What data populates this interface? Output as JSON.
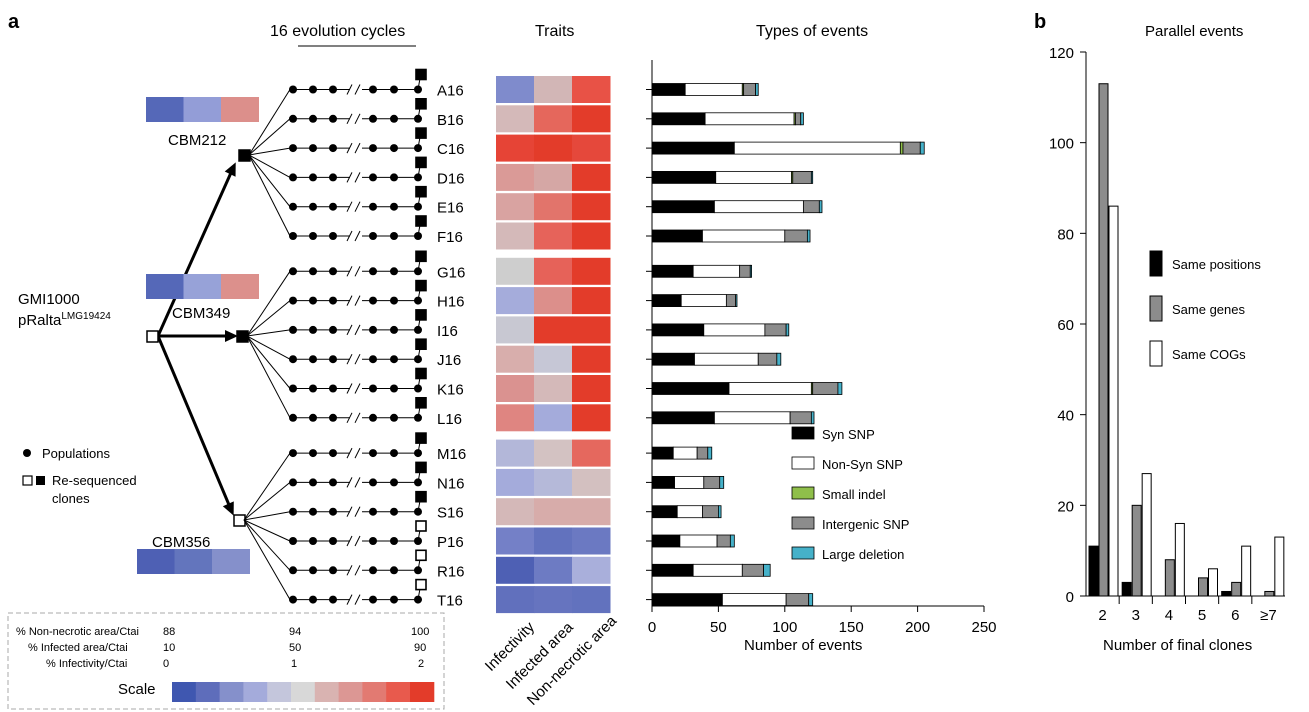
{
  "panels": {
    "a": "a",
    "b": "b"
  },
  "header": {
    "cycles": "16 evolution cycles",
    "traits": "Traits",
    "events_title": "Types of events"
  },
  "tree": {
    "ancestor_line1": "GMI1000",
    "ancestor_line2_base": "pRalta",
    "ancestor_line2_sup": "LMG19424",
    "parents": [
      "CBM212",
      "CBM349",
      "CBM356"
    ],
    "legend_populations": "Populations",
    "legend_clones_line1": "Re-sequenced",
    "legend_clones_line2": "clones"
  },
  "parent_trait_colors": [
    [
      "#5568b8",
      "#939dd7",
      "#dc8f8b"
    ],
    [
      "#5568b8",
      "#97a2d8",
      "#dc908c"
    ],
    [
      "#4e60b4",
      "#6375bd",
      "#8590cb"
    ]
  ],
  "clones": [
    {
      "name": "A16",
      "open": false,
      "traits": [
        "#7f8bcc",
        "#d2b6b6",
        "#e85246"
      ]
    },
    {
      "name": "B16",
      "open": false,
      "traits": [
        "#d4b9b9",
        "#e5675c",
        "#e33c2a"
      ]
    },
    {
      "name": "C16",
      "open": false,
      "traits": [
        "#e64436",
        "#e33c2a",
        "#e5483b"
      ]
    },
    {
      "name": "D16",
      "open": false,
      "traits": [
        "#da9a97",
        "#d5a7a5",
        "#e33c2a"
      ]
    },
    {
      "name": "E16",
      "open": false,
      "traits": [
        "#d9a3a1",
        "#e2746b",
        "#e33c2a"
      ]
    },
    {
      "name": "F16",
      "open": false,
      "traits": [
        "#d4b9b9",
        "#e6635a",
        "#e33c2a"
      ]
    },
    {
      "name": "G16",
      "open": false,
      "traits": [
        "#cecece",
        "#e66259",
        "#e33c2a"
      ]
    },
    {
      "name": "H16",
      "open": false,
      "traits": [
        "#a5acdb",
        "#dc8f8b",
        "#e33c2a"
      ]
    },
    {
      "name": "I16",
      "open": false,
      "traits": [
        "#c8c8d2",
        "#e33c2a",
        "#e33c2a"
      ]
    },
    {
      "name": "J16",
      "open": false,
      "traits": [
        "#d8aeac",
        "#c6c7d6",
        "#e33c2a"
      ]
    },
    {
      "name": "K16",
      "open": false,
      "traits": [
        "#da9290",
        "#d4b9b9",
        "#e33c2a"
      ]
    },
    {
      "name": "L16",
      "open": false,
      "traits": [
        "#df8581",
        "#a4abdb",
        "#e33c2a"
      ]
    },
    {
      "name": "M16",
      "open": false,
      "traits": [
        "#b3b7d9",
        "#d3c2c2",
        "#e5685e"
      ]
    },
    {
      "name": "N16",
      "open": false,
      "traits": [
        "#a4abdb",
        "#b5b9d9",
        "#d3c0c0"
      ]
    },
    {
      "name": "S16",
      "open": false,
      "traits": [
        "#d4b8b8",
        "#d7acaa",
        "#d7acaa"
      ]
    },
    {
      "name": "P16",
      "open": true,
      "traits": [
        "#7480c7",
        "#6272be",
        "#6b79c2"
      ]
    },
    {
      "name": "R16",
      "open": true,
      "traits": [
        "#4e60b4",
        "#6d7bc3",
        "#a9afdb"
      ]
    },
    {
      "name": "T16",
      "open": true,
      "traits": [
        "#6170bd",
        "#6674bf",
        "#6272be"
      ]
    }
  ],
  "trait_axis_labels": [
    "Infectivity",
    "Infected area",
    "Non-necrotic area"
  ],
  "scale": {
    "rows": [
      {
        "label": "% Non-necrotic area/Ctai",
        "v1": "88",
        "v2": "94",
        "v3": "100"
      },
      {
        "label": "% Infected area/Ctai",
        "v1": "10",
        "v2": "50",
        "v3": "90"
      },
      {
        "label": "% Infectivity/Ctai",
        "v1": "0",
        "v2": "1",
        "v3": "2"
      }
    ],
    "title": "Scale",
    "colors": [
      "#3f57b0",
      "#5e6dbb",
      "#8590cb",
      "#a4abdb",
      "#c4c6dc",
      "#d8d8d8",
      "#d9b3b1",
      "#dc9794",
      "#e27a72",
      "#e85a4d",
      "#e33c2a"
    ]
  },
  "events_chart": {
    "type": "bar",
    "orientation": "horizontal",
    "stacked": true,
    "xlabel": "Number of events",
    "xlim": [
      0,
      250
    ],
    "xticks": [
      "0",
      "50",
      "100",
      "150",
      "200",
      "250"
    ],
    "categories": [
      "A16",
      "B16",
      "C16",
      "D16",
      "E16",
      "F16",
      "G16",
      "H16",
      "I16",
      "J16",
      "K16",
      "L16",
      "M16",
      "N16",
      "S16",
      "P16",
      "R16",
      "T16"
    ],
    "series": [
      {
        "name": "Syn SNP",
        "color": "#000000",
        "values": [
          25,
          40,
          62,
          48,
          47,
          38,
          31,
          22,
          39,
          32,
          58,
          47,
          16,
          17,
          19,
          21,
          31,
          53
        ]
      },
      {
        "name": "Non-Syn SNP",
        "color": "#ffffff",
        "values": [
          43,
          67,
          125,
          57,
          67,
          62,
          35,
          34,
          46,
          48,
          62,
          57,
          18,
          22,
          19,
          28,
          37,
          48
        ]
      },
      {
        "name": "Small indel",
        "color": "#8fbf4a",
        "values": [
          1,
          1,
          2,
          1,
          0,
          0,
          0,
          0,
          0,
          0,
          1,
          0,
          0,
          0,
          0,
          0,
          0,
          0
        ]
      },
      {
        "name": "Intergenic SNP",
        "color": "#8c8c8c",
        "values": [
          9,
          4,
          13,
          14,
          12,
          17,
          8,
          7,
          16,
          14,
          19,
          16,
          8,
          12,
          12,
          10,
          16,
          17
        ]
      },
      {
        "name": "Large deletion",
        "color": "#45b1c9",
        "values": [
          2,
          2,
          3,
          1,
          2,
          2,
          1,
          1,
          2,
          3,
          3,
          2,
          3,
          3,
          2,
          3,
          5,
          3
        ]
      }
    ]
  },
  "parallel_chart": {
    "type": "bar",
    "title": "Parallel events",
    "xlabel": "Number of final clones",
    "categories": [
      "2",
      "3",
      "4",
      "5",
      "6",
      "≥7"
    ],
    "ylim": [
      0,
      120
    ],
    "yticks": [
      "0",
      "20",
      "40",
      "60",
      "80",
      "100",
      "120"
    ],
    "series": [
      {
        "name": "Same positions",
        "color": "#000000",
        "values": [
          11,
          3,
          0,
          0,
          1,
          0
        ]
      },
      {
        "name": "Same genes",
        "color": "#8c8c8c",
        "values": [
          113,
          20,
          8,
          4,
          3,
          1
        ]
      },
      {
        "name": "Same COGs",
        "color": "#ffffff",
        "values": [
          86,
          27,
          16,
          6,
          11,
          13
        ]
      }
    ]
  }
}
